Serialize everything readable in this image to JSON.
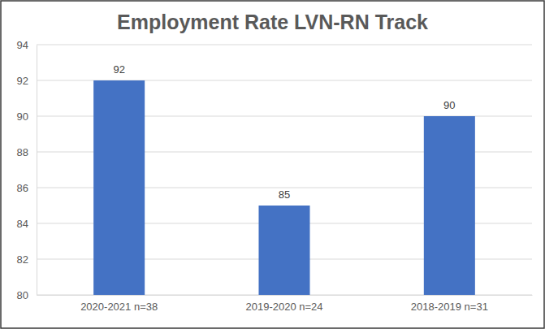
{
  "chart_data": {
    "type": "bar",
    "title": "Employment Rate LVN-RN Track",
    "categories": [
      "2020-2021 n=38",
      "2019-2020 n=24",
      "2018-2019 n=31"
    ],
    "values": [
      92,
      85,
      90
    ],
    "color": "#4472c4",
    "ylim": [
      80,
      94
    ],
    "yticks": [
      80,
      82,
      84,
      86,
      88,
      90,
      92,
      94
    ],
    "grid": true,
    "data_labels": true
  }
}
